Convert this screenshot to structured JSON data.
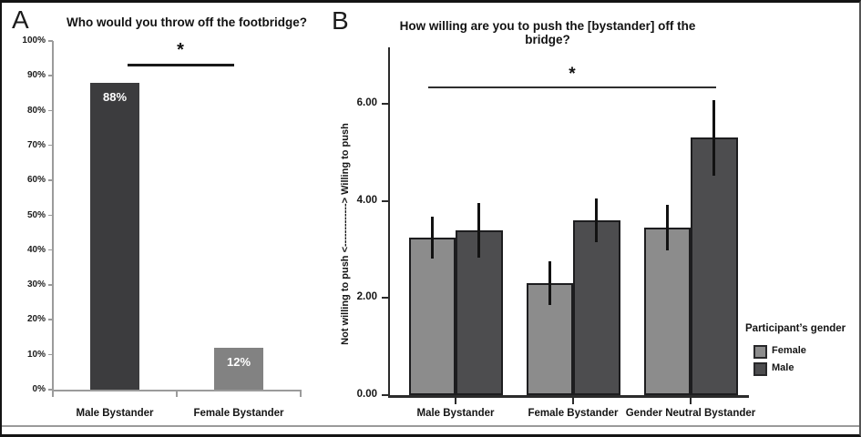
{
  "figure": {
    "panels": [
      {
        "letter": "A"
      },
      {
        "letter": "B"
      }
    ]
  },
  "chart_data": [
    {
      "panel": "A",
      "type": "bar",
      "title": "Who would you throw off the footbridge?",
      "categories": [
        "Male Bystander",
        "Female Bystander"
      ],
      "values": [
        88,
        12
      ],
      "value_labels": [
        "88%",
        "12%"
      ],
      "bar_colors": [
        "#3c3c3e",
        "#828282"
      ],
      "value_label_color": "#ffffff",
      "ylim": [
        0,
        100
      ],
      "ytick_step": 10,
      "ytick_labels": [
        "0%",
        "10%",
        "20%",
        "30%",
        "40%",
        "50%",
        "60%",
        "70%",
        "80%",
        "90%",
        "100%"
      ],
      "grid": false,
      "axis_color": "#9b9b9b",
      "significance": {
        "label": "*",
        "between": [
          "Male Bystander",
          "Female Bystander"
        ]
      }
    },
    {
      "panel": "B",
      "type": "grouped_bar",
      "error_bars": true,
      "title": "How willing are you to push the [bystander] off the bridge?",
      "categories": [
        "Male Bystander",
        "Female Bystander",
        "Gender Neutral Bystander"
      ],
      "series": [
        {
          "name": "Female",
          "color": "#8c8c8c",
          "values": [
            3.25,
            2.3,
            3.45
          ],
          "errors": [
            0.43,
            0.45,
            0.47
          ]
        },
        {
          "name": "Male",
          "color": "#4d4d4f",
          "values": [
            3.4,
            3.6,
            5.3
          ],
          "errors": [
            0.56,
            0.45,
            0.78
          ]
        }
      ],
      "ylabel": "Not willing to push <-------------> Willing to push",
      "ylim": [
        0,
        7.2
      ],
      "ytick_values": [
        0,
        2,
        4,
        6
      ],
      "ytick_labels": [
        "0.00",
        "2.00",
        "4.00",
        "6.00"
      ],
      "grid": false,
      "axis_color": "#2b2b2b",
      "legend_title": "Participant’s gender",
      "legend_position": "right",
      "significance": {
        "label": "*",
        "between": [
          "Male Bystander (Female)",
          "Gender Neutral Bystander (Male)"
        ]
      }
    }
  ]
}
